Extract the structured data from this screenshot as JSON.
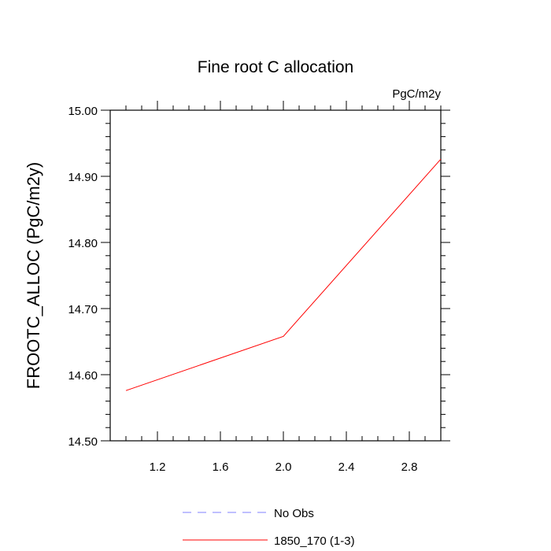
{
  "chart_data": {
    "type": "line",
    "title": "Fine root C allocation",
    "units_label": "PgC/m2y",
    "xlabel": "",
    "ylabel": "FROOTC_ALLOC  (PgC/m2y)",
    "xlim": [
      0.9,
      3.0
    ],
    "ylim": [
      14.5,
      15.0
    ],
    "x_ticks": [
      1.2,
      1.6,
      2.0,
      2.4,
      2.8
    ],
    "x_tick_labels": [
      "1.2",
      "1.6",
      "2.0",
      "2.4",
      "2.8"
    ],
    "y_ticks": [
      14.5,
      14.6,
      14.7,
      14.8,
      14.9,
      15.0
    ],
    "y_tick_labels": [
      "14.50",
      "14.60",
      "14.70",
      "14.80",
      "14.90",
      "15.00"
    ],
    "grid": false,
    "legend_position": "bottom",
    "series": [
      {
        "name": "1850_170 (1-3)",
        "color": "#ff0000",
        "dash": "solid",
        "x": [
          1.0,
          2.0,
          3.0
        ],
        "y": [
          14.576,
          14.658,
          14.926
        ]
      }
    ],
    "legend": [
      {
        "label": "No Obs",
        "color": "#8080ff",
        "dash": "dashed"
      },
      {
        "label": "1850_170 (1-3)",
        "color": "#ff0000",
        "dash": "solid"
      }
    ]
  }
}
